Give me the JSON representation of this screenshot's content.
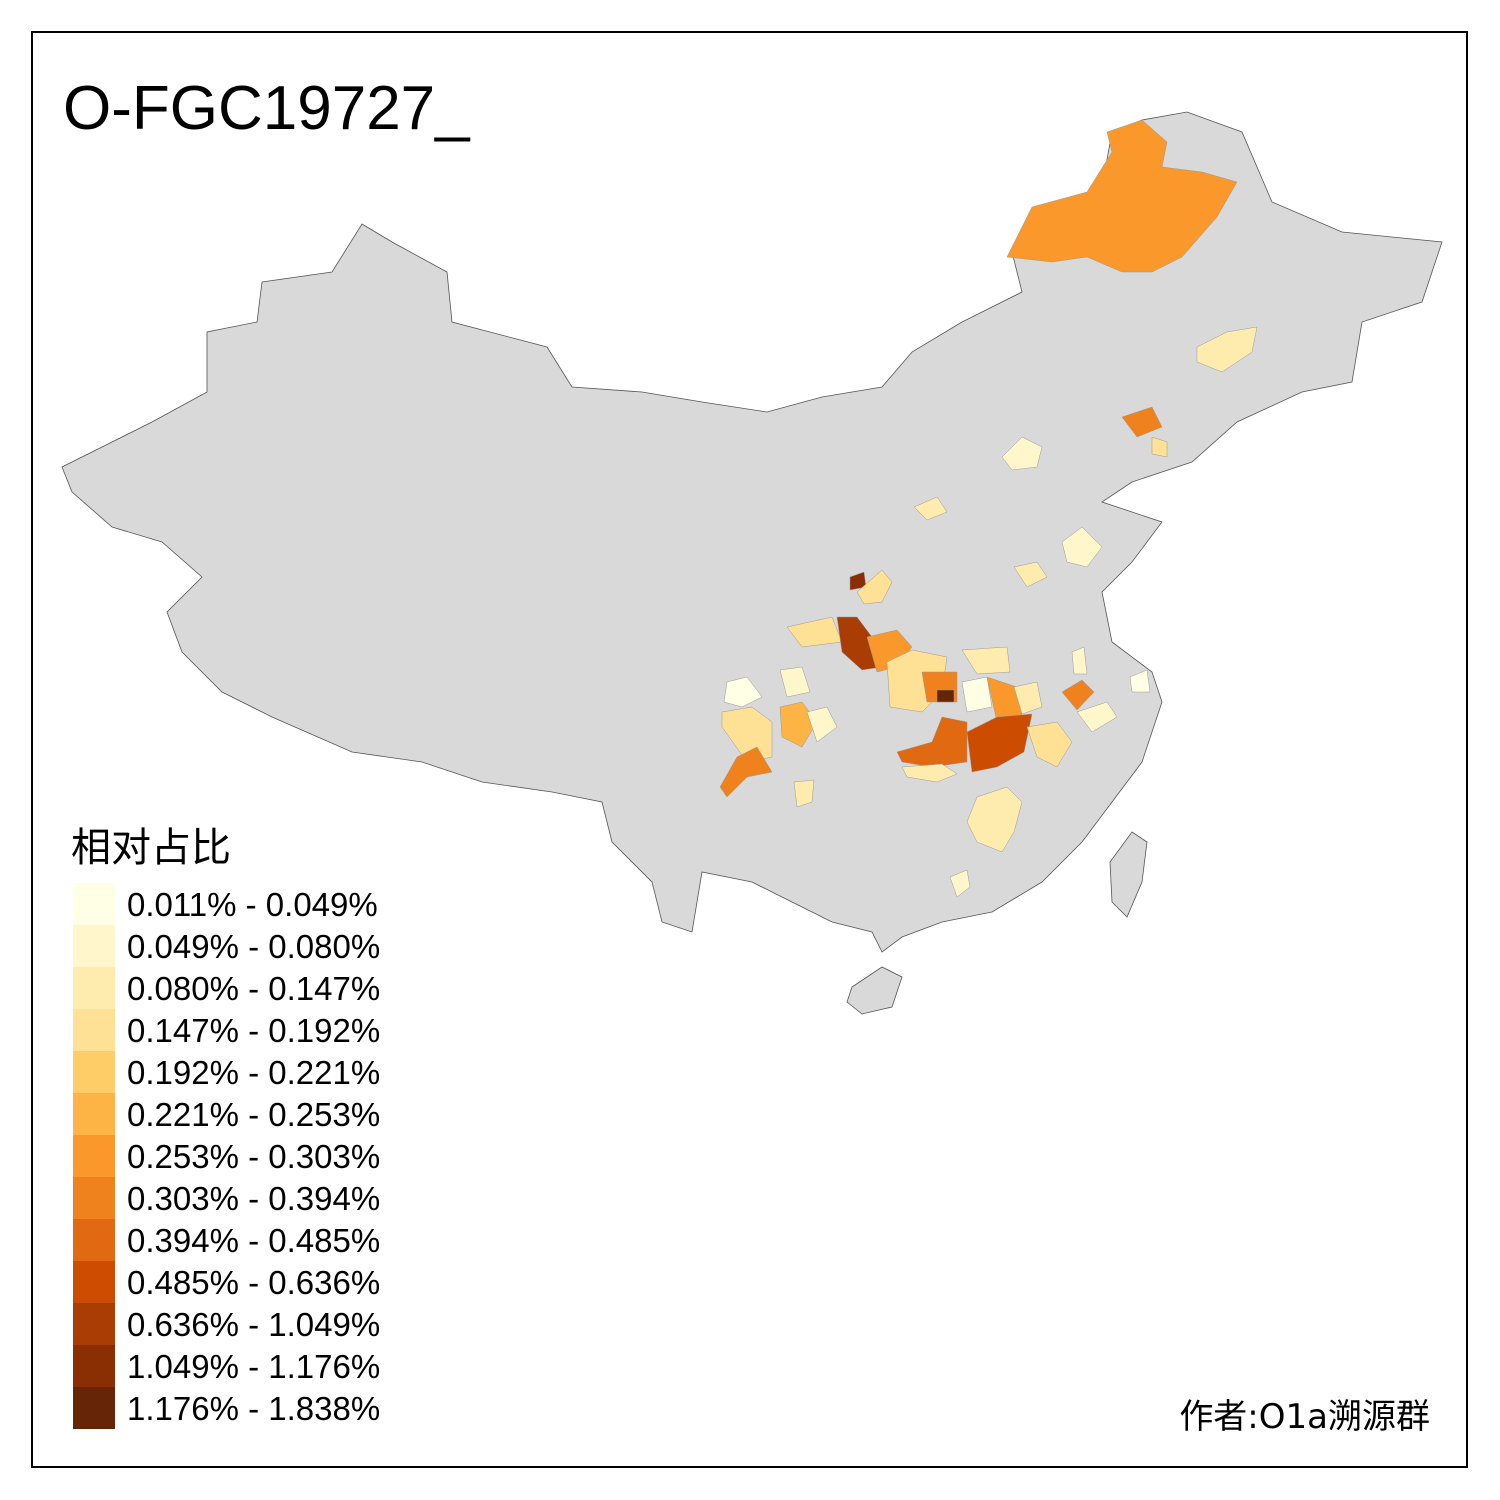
{
  "title": "O-FGC19727_",
  "legend": {
    "title": "相对占比",
    "items": [
      {
        "label": "0.011% - 0.049%",
        "color": "#FFFFE5"
      },
      {
        "label": "0.049% - 0.080%",
        "color": "#FFF7CB"
      },
      {
        "label": "0.080% - 0.147%",
        "color": "#FEECAE"
      },
      {
        "label": "0.147% - 0.192%",
        "color": "#FEE195"
      },
      {
        "label": "0.192% - 0.221%",
        "color": "#FECD67"
      },
      {
        "label": "0.221% - 0.253%",
        "color": "#FEB444"
      },
      {
        "label": "0.253% - 0.303%",
        "color": "#FB982B"
      },
      {
        "label": "0.303% - 0.394%",
        "color": "#F0821E"
      },
      {
        "label": "0.394% - 0.485%",
        "color": "#E06912"
      },
      {
        "label": "0.485% - 0.636%",
        "color": "#CC4C02"
      },
      {
        "label": "0.636% - 1.049%",
        "color": "#A93D04"
      },
      {
        "label": "1.049% - 1.176%",
        "color": "#8A2E04"
      },
      {
        "label": "1.176% - 1.838%",
        "color": "#662506"
      }
    ]
  },
  "base_color": "#D9D9D9",
  "author": "作者:O1a溯源群"
}
